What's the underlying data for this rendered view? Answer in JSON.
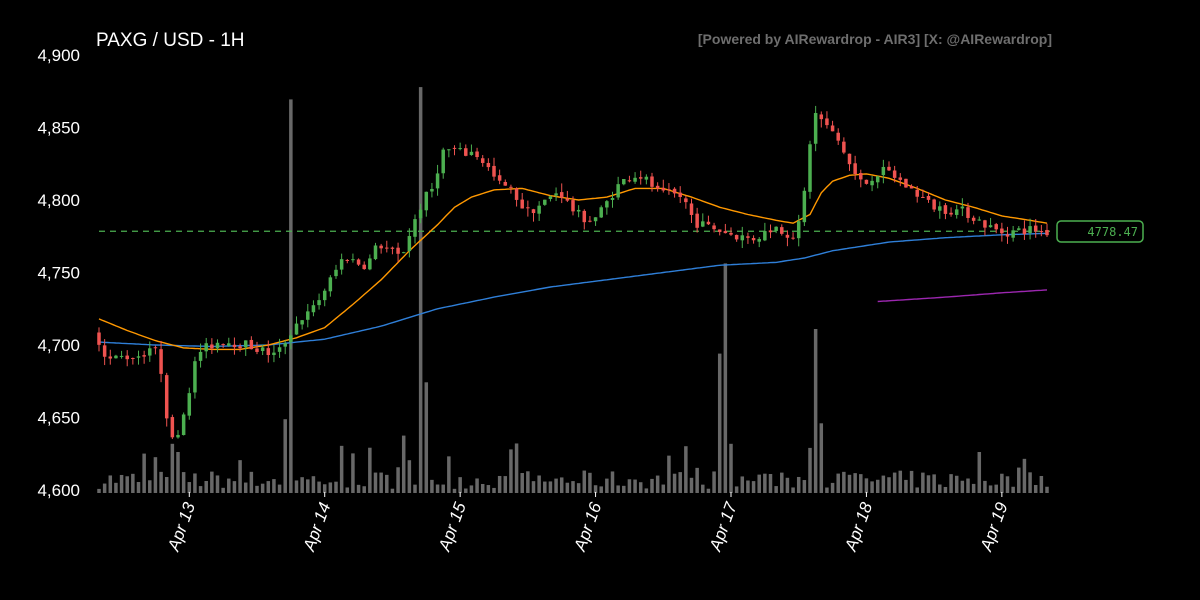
{
  "title": "PAXG / USD - 1H",
  "watermark": "[Powered by AIRewardrop - AIR3] [X: @AIRewardrop]",
  "last_price_label": "4778.47",
  "colors": {
    "background": "#000000",
    "up": "#4caf50",
    "down": "#ef5350",
    "volume": "#6e6e6e",
    "ma_short": "#ff9800",
    "ma_mid": "#2f7fd8",
    "ma_long": "#9c27b0",
    "last_price_line": "#4caf50",
    "text": "#ffffff"
  },
  "chart_data": {
    "type": "candlestick",
    "ylim": [
      4600,
      4900
    ],
    "y_ticks": [
      {
        "value": 4900,
        "label": "4,900"
      },
      {
        "value": 4850,
        "label": "4,850"
      },
      {
        "value": 4800,
        "label": "4,800"
      },
      {
        "value": 4750,
        "label": "4,750"
      },
      {
        "value": 4700,
        "label": "4,700"
      },
      {
        "value": 4650,
        "label": "4,650"
      },
      {
        "value": 4600,
        "label": "4,600"
      }
    ],
    "x_ticks": [
      {
        "hour": 16,
        "label": "Apr 13"
      },
      {
        "hour": 40,
        "label": "Apr 14"
      },
      {
        "hour": 64,
        "label": "Apr 15"
      },
      {
        "hour": 88,
        "label": "Apr 16"
      },
      {
        "hour": 112,
        "label": "Apr 17"
      },
      {
        "hour": 136,
        "label": "Apr 18"
      },
      {
        "hour": 160,
        "label": "Apr 19"
      }
    ],
    "last_price": 4778.47,
    "price_anchors": [
      [
        0,
        4708
      ],
      [
        2,
        4690
      ],
      [
        5,
        4692
      ],
      [
        8,
        4693
      ],
      [
        10,
        4700
      ],
      [
        11,
        4690
      ],
      [
        12,
        4675
      ],
      [
        13,
        4630
      ],
      [
        15,
        4645
      ],
      [
        18,
        4695
      ],
      [
        22,
        4703
      ],
      [
        24,
        4702
      ],
      [
        27,
        4700
      ],
      [
        30,
        4695
      ],
      [
        32,
        4693
      ],
      [
        34,
        4706
      ],
      [
        36,
        4718
      ],
      [
        38,
        4722
      ],
      [
        40,
        4735
      ],
      [
        42,
        4748
      ],
      [
        44,
        4762
      ],
      [
        46,
        4757
      ],
      [
        48,
        4755
      ],
      [
        50,
        4770
      ],
      [
        52,
        4765
      ],
      [
        54,
        4760
      ],
      [
        56,
        4782
      ],
      [
        58,
        4800
      ],
      [
        60,
        4810
      ],
      [
        61,
        4833
      ],
      [
        63,
        4835
      ],
      [
        65,
        4832
      ],
      [
        67,
        4833
      ],
      [
        69,
        4825
      ],
      [
        71,
        4812
      ],
      [
        73,
        4808
      ],
      [
        75,
        4800
      ],
      [
        76,
        4791
      ],
      [
        78,
        4795
      ],
      [
        80,
        4800
      ],
      [
        82,
        4807
      ],
      [
        84,
        4795
      ],
      [
        86,
        4788
      ],
      [
        88,
        4786
      ],
      [
        90,
        4795
      ],
      [
        92,
        4808
      ],
      [
        94,
        4815
      ],
      [
        96,
        4818
      ],
      [
        98,
        4812
      ],
      [
        100,
        4803
      ],
      [
        102,
        4804
      ],
      [
        104,
        4802
      ],
      [
        106,
        4785
      ],
      [
        108,
        4782
      ],
      [
        110,
        4780
      ],
      [
        112,
        4777
      ],
      [
        114,
        4775
      ],
      [
        116,
        4773
      ],
      [
        118,
        4776
      ],
      [
        120,
        4782
      ],
      [
        122,
        4778
      ],
      [
        124,
        4775
      ],
      [
        125,
        4790
      ],
      [
        126,
        4820
      ],
      [
        127,
        4860
      ],
      [
        128,
        4858
      ],
      [
        130,
        4848
      ],
      [
        132,
        4838
      ],
      [
        134,
        4820
      ],
      [
        136,
        4810
      ],
      [
        138,
        4818
      ],
      [
        140,
        4820
      ],
      [
        142,
        4815
      ],
      [
        144,
        4808
      ],
      [
        146,
        4803
      ],
      [
        148,
        4796
      ],
      [
        150,
        4794
      ],
      [
        152,
        4793
      ],
      [
        154,
        4792
      ],
      [
        156,
        4787
      ],
      [
        158,
        4782
      ],
      [
        160,
        4778
      ],
      [
        162,
        4778
      ],
      [
        164,
        4779
      ],
      [
        166,
        4780
      ],
      [
        168,
        4778
      ]
    ],
    "volume_max": 1.0,
    "volume_spikes": [
      {
        "hour": 13,
        "value": 0.12
      },
      {
        "hour": 14,
        "value": 0.1
      },
      {
        "hour": 33,
        "value": 0.18
      },
      {
        "hour": 34,
        "value": 0.96
      },
      {
        "hour": 54,
        "value": 0.14
      },
      {
        "hour": 55,
        "value": 0.08
      },
      {
        "hour": 57,
        "value": 0.99
      },
      {
        "hour": 58,
        "value": 0.27
      },
      {
        "hour": 110,
        "value": 0.34
      },
      {
        "hour": 111,
        "value": 0.56
      },
      {
        "hour": 112,
        "value": 0.12
      },
      {
        "hour": 126,
        "value": 0.11
      },
      {
        "hour": 127,
        "value": 0.4
      },
      {
        "hour": 128,
        "value": 0.17
      },
      {
        "hour": 156,
        "value": 0.1
      }
    ],
    "ma_short_anchors": [
      [
        0,
        4718
      ],
      [
        5,
        4710
      ],
      [
        10,
        4703
      ],
      [
        15,
        4698
      ],
      [
        20,
        4697
      ],
      [
        25,
        4697
      ],
      [
        30,
        4700
      ],
      [
        35,
        4705
      ],
      [
        40,
        4712
      ],
      [
        45,
        4728
      ],
      [
        50,
        4745
      ],
      [
        55,
        4765
      ],
      [
        60,
        4783
      ],
      [
        63,
        4795
      ],
      [
        66,
        4802
      ],
      [
        70,
        4807
      ],
      [
        75,
        4808
      ],
      [
        80,
        4803
      ],
      [
        85,
        4800
      ],
      [
        90,
        4802
      ],
      [
        95,
        4808
      ],
      [
        100,
        4808
      ],
      [
        105,
        4802
      ],
      [
        110,
        4795
      ],
      [
        115,
        4790
      ],
      [
        120,
        4786
      ],
      [
        123,
        4784
      ],
      [
        126,
        4790
      ],
      [
        128,
        4805
      ],
      [
        130,
        4813
      ],
      [
        133,
        4817
      ],
      [
        136,
        4818
      ],
      [
        140,
        4815
      ],
      [
        145,
        4808
      ],
      [
        150,
        4800
      ],
      [
        155,
        4795
      ],
      [
        160,
        4789
      ],
      [
        165,
        4786
      ],
      [
        168,
        4784
      ]
    ],
    "ma_mid_anchors": [
      [
        0,
        4702
      ],
      [
        10,
        4700
      ],
      [
        20,
        4699
      ],
      [
        30,
        4700
      ],
      [
        40,
        4704
      ],
      [
        50,
        4713
      ],
      [
        60,
        4725
      ],
      [
        70,
        4733
      ],
      [
        80,
        4740
      ],
      [
        90,
        4745
      ],
      [
        100,
        4750
      ],
      [
        110,
        4755
      ],
      [
        120,
        4757
      ],
      [
        125,
        4760
      ],
      [
        130,
        4765
      ],
      [
        140,
        4771
      ],
      [
        150,
        4774
      ],
      [
        160,
        4776
      ],
      [
        168,
        4777
      ]
    ],
    "ma_long_anchors": [
      [
        138,
        4730
      ],
      [
        150,
        4733
      ],
      [
        160,
        4736
      ],
      [
        168,
        4738
      ]
    ]
  }
}
